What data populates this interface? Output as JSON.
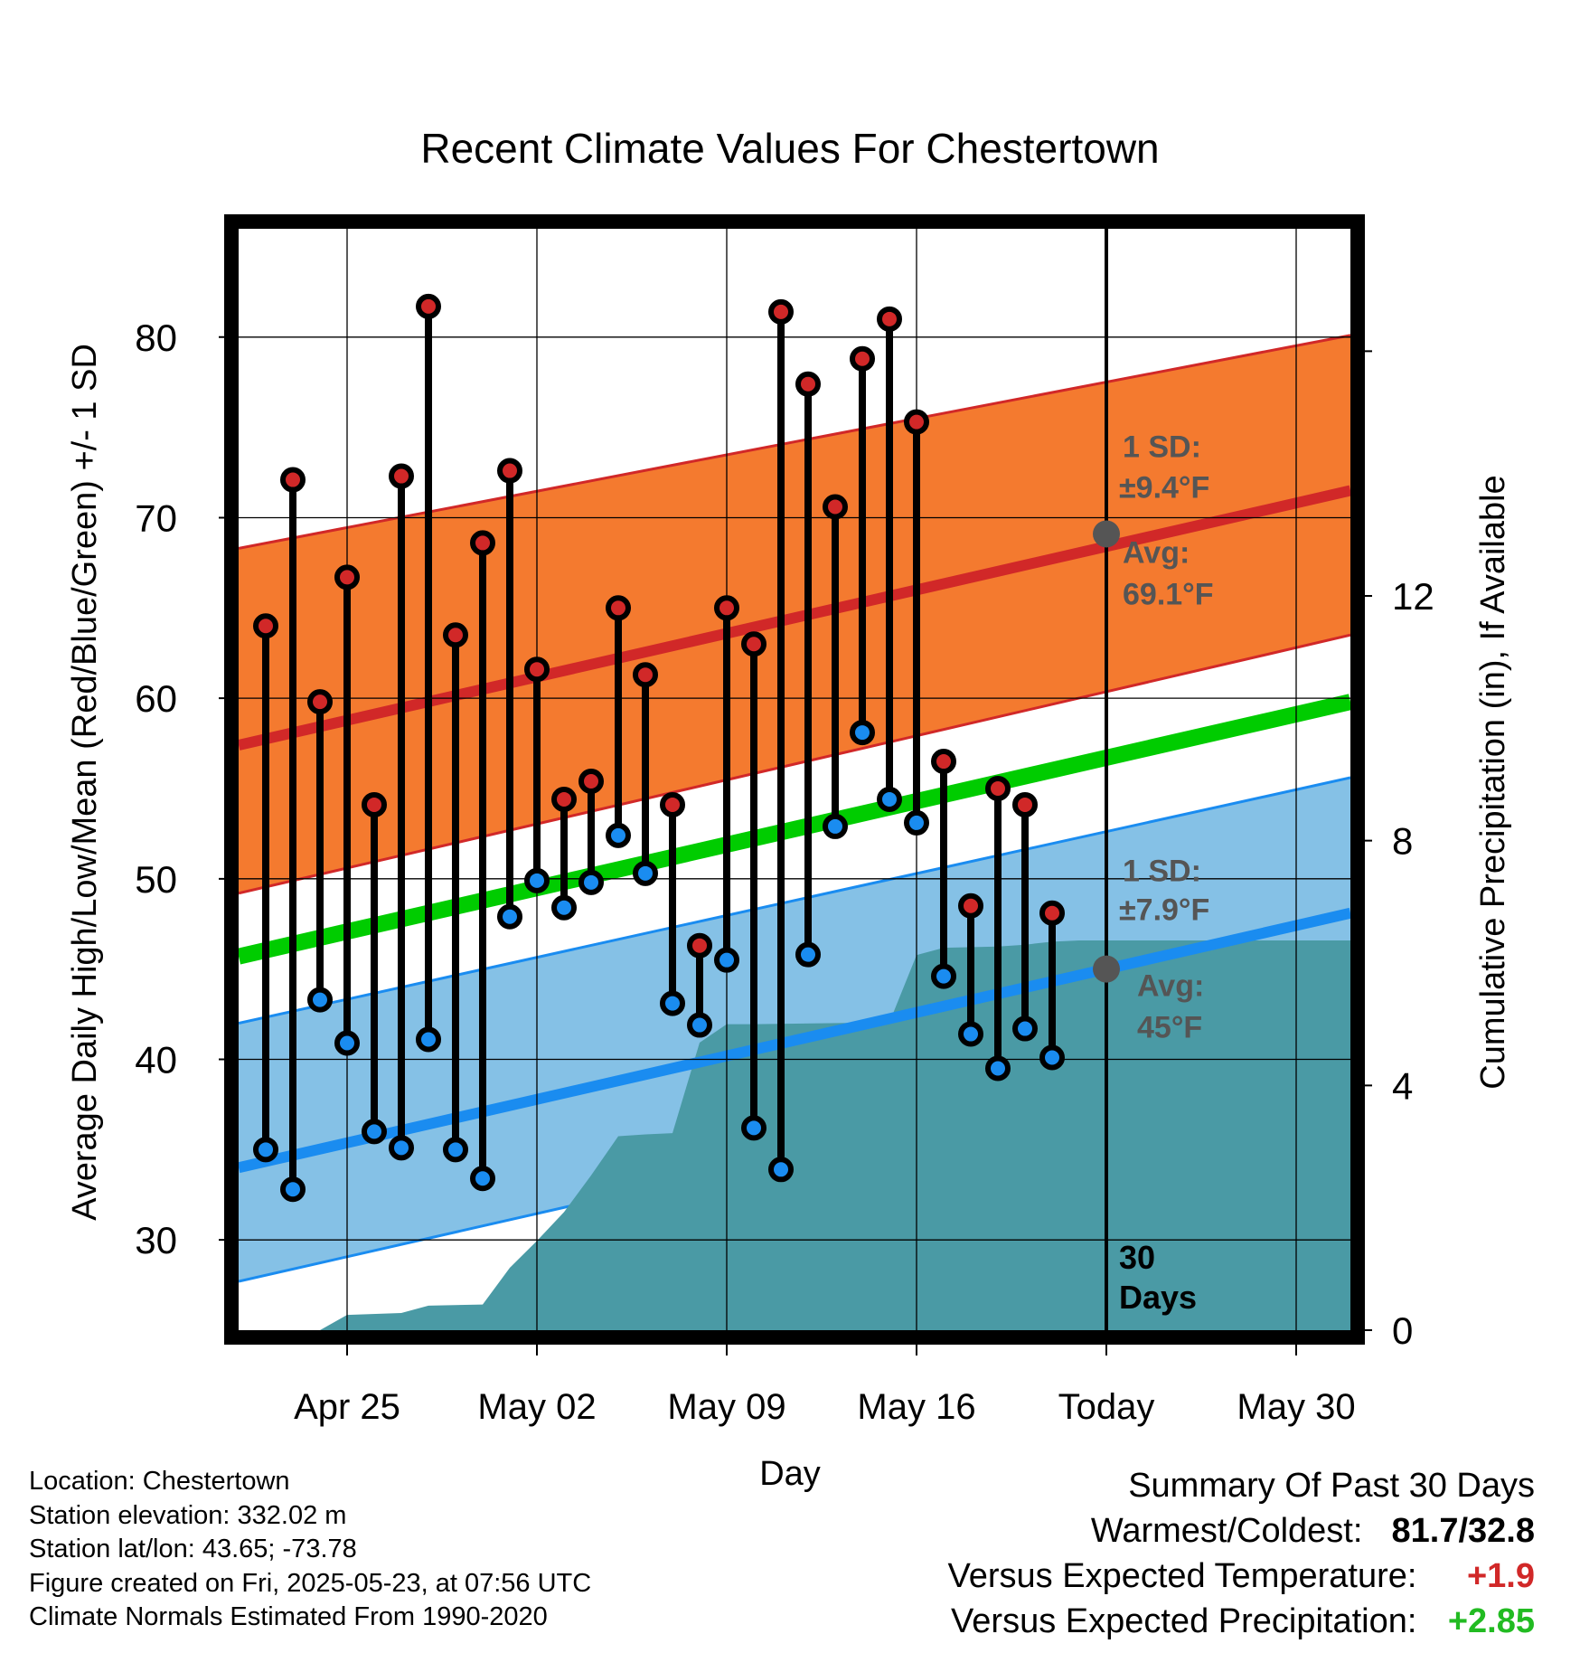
{
  "chart_data": {
    "type": "line",
    "title": "Recent Climate Values For Chestertown",
    "xlabel": "Day",
    "ylabel": "Average Daily High/Low/Mean (Red/Blue/Green) +/- 1 SD",
    "y2label": "Cumulative Precipitation (in), If Available",
    "ylim": [
      25,
      86
    ],
    "y2lim": [
      0,
      18
    ],
    "xlim": [
      "2025-04-21",
      "2025-06-01"
    ],
    "x_ticks": [
      {
        "date": "2025-04-25",
        "label": "Apr 25"
      },
      {
        "date": "2025-05-02",
        "label": "May 02"
      },
      {
        "date": "2025-05-09",
        "label": "May 09"
      },
      {
        "date": "2025-05-16",
        "label": "May 16"
      },
      {
        "date": "2025-05-23",
        "label": "Today"
      },
      {
        "date": "2025-05-30",
        "label": "May 30"
      }
    ],
    "y_ticks": [
      30,
      40,
      50,
      60,
      70,
      80
    ],
    "y2_ticks": [
      0,
      4,
      8,
      12
    ],
    "grid": true,
    "today": "2025-05-23",
    "period_label": [
      "30",
      "Days"
    ],
    "colors": {
      "high_band": "#f47a2f",
      "high_line": "#d12828",
      "high_point": "#d12828",
      "low_band": "#85c1e6",
      "low_line": "#1a8cf0",
      "low_point": "#1a8cf0",
      "mean_line": "#00cc00",
      "precip": "#4a9aa5",
      "annotation": "#555555"
    },
    "normals": {
      "dates": [
        "2025-04-21",
        "2025-06-01"
      ],
      "high_mean": [
        57.4,
        71.5
      ],
      "high_upper": [
        68.3,
        80.1
      ],
      "high_lower": [
        49.2,
        63.5
      ],
      "low_mean": [
        34.0,
        48.1
      ],
      "low_upper": [
        42.0,
        55.6
      ],
      "low_lower": [
        27.7,
        41.7
      ],
      "mean_normal": [
        45.7,
        59.8
      ]
    },
    "daily": [
      {
        "date": "2025-04-22",
        "high": 64.0,
        "low": 35.0
      },
      {
        "date": "2025-04-23",
        "high": 72.1,
        "low": 32.8
      },
      {
        "date": "2025-04-24",
        "high": 59.8,
        "low": 43.3
      },
      {
        "date": "2025-04-25",
        "high": 66.7,
        "low": 40.9
      },
      {
        "date": "2025-04-26",
        "high": 54.1,
        "low": 36.0
      },
      {
        "date": "2025-04-27",
        "high": 72.3,
        "low": 35.1
      },
      {
        "date": "2025-04-28",
        "high": 81.7,
        "low": 41.1
      },
      {
        "date": "2025-04-29",
        "high": 63.5,
        "low": 35.0
      },
      {
        "date": "2025-04-30",
        "high": 68.6,
        "low": 33.4
      },
      {
        "date": "2025-05-01",
        "high": 72.6,
        "low": 47.9
      },
      {
        "date": "2025-05-02",
        "high": 61.6,
        "low": 49.9
      },
      {
        "date": "2025-05-03",
        "high": 54.4,
        "low": 48.4
      },
      {
        "date": "2025-05-04",
        "high": 55.4,
        "low": 49.8
      },
      {
        "date": "2025-05-05",
        "high": 65.0,
        "low": 52.4
      },
      {
        "date": "2025-05-06",
        "high": 61.3,
        "low": 50.3
      },
      {
        "date": "2025-05-07",
        "high": 54.1,
        "low": 43.1
      },
      {
        "date": "2025-05-08",
        "high": 46.3,
        "low": 41.9
      },
      {
        "date": "2025-05-09",
        "high": 65.0,
        "low": 45.5
      },
      {
        "date": "2025-05-10",
        "high": 63.0,
        "low": 36.2
      },
      {
        "date": "2025-05-11",
        "high": 81.4,
        "low": 33.9
      },
      {
        "date": "2025-05-12",
        "high": 77.4,
        "low": 45.8
      },
      {
        "date": "2025-05-13",
        "high": 70.6,
        "low": 52.9
      },
      {
        "date": "2025-05-14",
        "high": 78.8,
        "low": 58.1
      },
      {
        "date": "2025-05-15",
        "high": 81.0,
        "low": 54.4
      },
      {
        "date": "2025-05-16",
        "high": 75.3,
        "low": 53.1
      },
      {
        "date": "2025-05-17",
        "high": 56.5,
        "low": 44.6
      },
      {
        "date": "2025-05-18",
        "high": 48.5,
        "low": 41.4
      },
      {
        "date": "2025-05-19",
        "high": 55.0,
        "low": 39.5
      },
      {
        "date": "2025-05-20",
        "high": 54.1,
        "low": 41.7
      },
      {
        "date": "2025-05-21",
        "high": 48.1,
        "low": 40.1
      }
    ],
    "precip_cumulative": [
      {
        "date": "2025-04-24",
        "value": 0.0
      },
      {
        "date": "2025-04-25",
        "value": 0.25
      },
      {
        "date": "2025-04-27",
        "value": 0.28
      },
      {
        "date": "2025-04-28",
        "value": 0.4
      },
      {
        "date": "2025-04-30",
        "value": 0.42
      },
      {
        "date": "2025-05-01",
        "value": 1.02
      },
      {
        "date": "2025-05-02",
        "value": 1.46
      },
      {
        "date": "2025-05-03",
        "value": 1.93
      },
      {
        "date": "2025-05-04",
        "value": 2.53
      },
      {
        "date": "2025-05-05",
        "value": 3.17
      },
      {
        "date": "2025-05-06",
        "value": 3.2
      },
      {
        "date": "2025-05-07",
        "value": 3.22
      },
      {
        "date": "2025-05-08",
        "value": 4.7
      },
      {
        "date": "2025-05-09",
        "value": 5.0
      },
      {
        "date": "2025-05-10",
        "value": 5.0
      },
      {
        "date": "2025-05-15",
        "value": 5.03
      },
      {
        "date": "2025-05-16",
        "value": 6.13
      },
      {
        "date": "2025-05-17",
        "value": 6.25
      },
      {
        "date": "2025-05-19",
        "value": 6.27
      },
      {
        "date": "2025-05-20",
        "value": 6.3
      },
      {
        "date": "2025-05-21",
        "value": 6.35
      },
      {
        "date": "2025-05-22",
        "value": 6.37
      },
      {
        "date": "2025-06-01",
        "value": 6.37
      }
    ],
    "annotations": {
      "high_sd_label": "1 SD:",
      "high_sd_value": "±9.4°F",
      "high_avg_label": "Avg:",
      "high_avg_value": "69.1°F",
      "high_avg_marker": 69.1,
      "low_sd_label": "1 SD:",
      "low_sd_value": "±7.9°F",
      "low_avg_label": "Avg:",
      "low_avg_value": "45°F",
      "low_avg_marker": 45.0
    }
  },
  "footer": {
    "location": "Location: Chestertown",
    "elevation": "Station elevation: 332.02 m",
    "latlon": "Station lat/lon: 43.65; -73.78",
    "created": "Figure created on Fri, 2025-05-23, at 07:56 UTC",
    "normals": "Climate Normals Estimated From 1990-2020"
  },
  "summary": {
    "heading": "Summary Of Past 30 Days",
    "warmest_coldest_label": "Warmest/Coldest:",
    "warmest_coldest_value": "81.7/32.8",
    "temp_label": "Versus Expected Temperature:",
    "temp_value": "+1.9",
    "temp_color": "#d12828",
    "precip_label": "Versus Expected Precipitation:",
    "precip_value": "+2.85",
    "precip_color": "#22bb22"
  }
}
